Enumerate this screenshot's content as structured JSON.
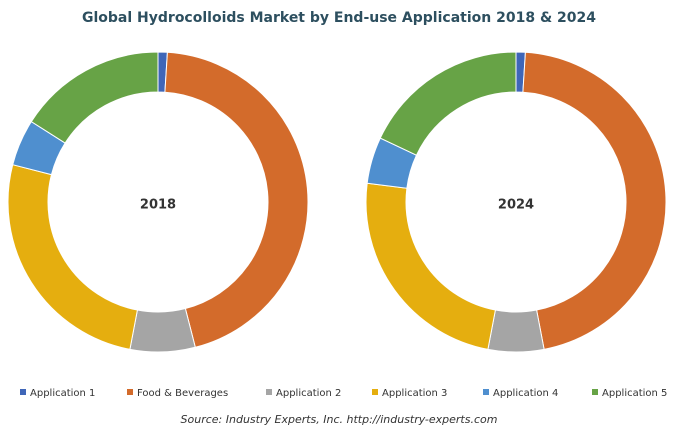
{
  "chart_data": {
    "type": "donut",
    "title": "Global Hydrocolloids Market by End-use Application 2018 & 2024",
    "categories": [
      "Application 1",
      "Food & Beverages",
      "Application 2",
      "Application 3",
      "Application 4",
      "Application 5"
    ],
    "colors": [
      "#3f66b8",
      "#d36b2b",
      "#a5a5a5",
      "#e5ae0f",
      "#4f8fcf",
      "#67a346"
    ],
    "series": [
      {
        "name": "2018",
        "values": [
          1,
          45,
          7,
          26,
          5,
          16
        ]
      },
      {
        "name": "2024",
        "values": [
          1,
          46,
          6,
          24,
          5,
          18
        ]
      }
    ],
    "legend": "bottom",
    "source": "Source: Industry Experts, Inc. http://industry-experts.com"
  }
}
